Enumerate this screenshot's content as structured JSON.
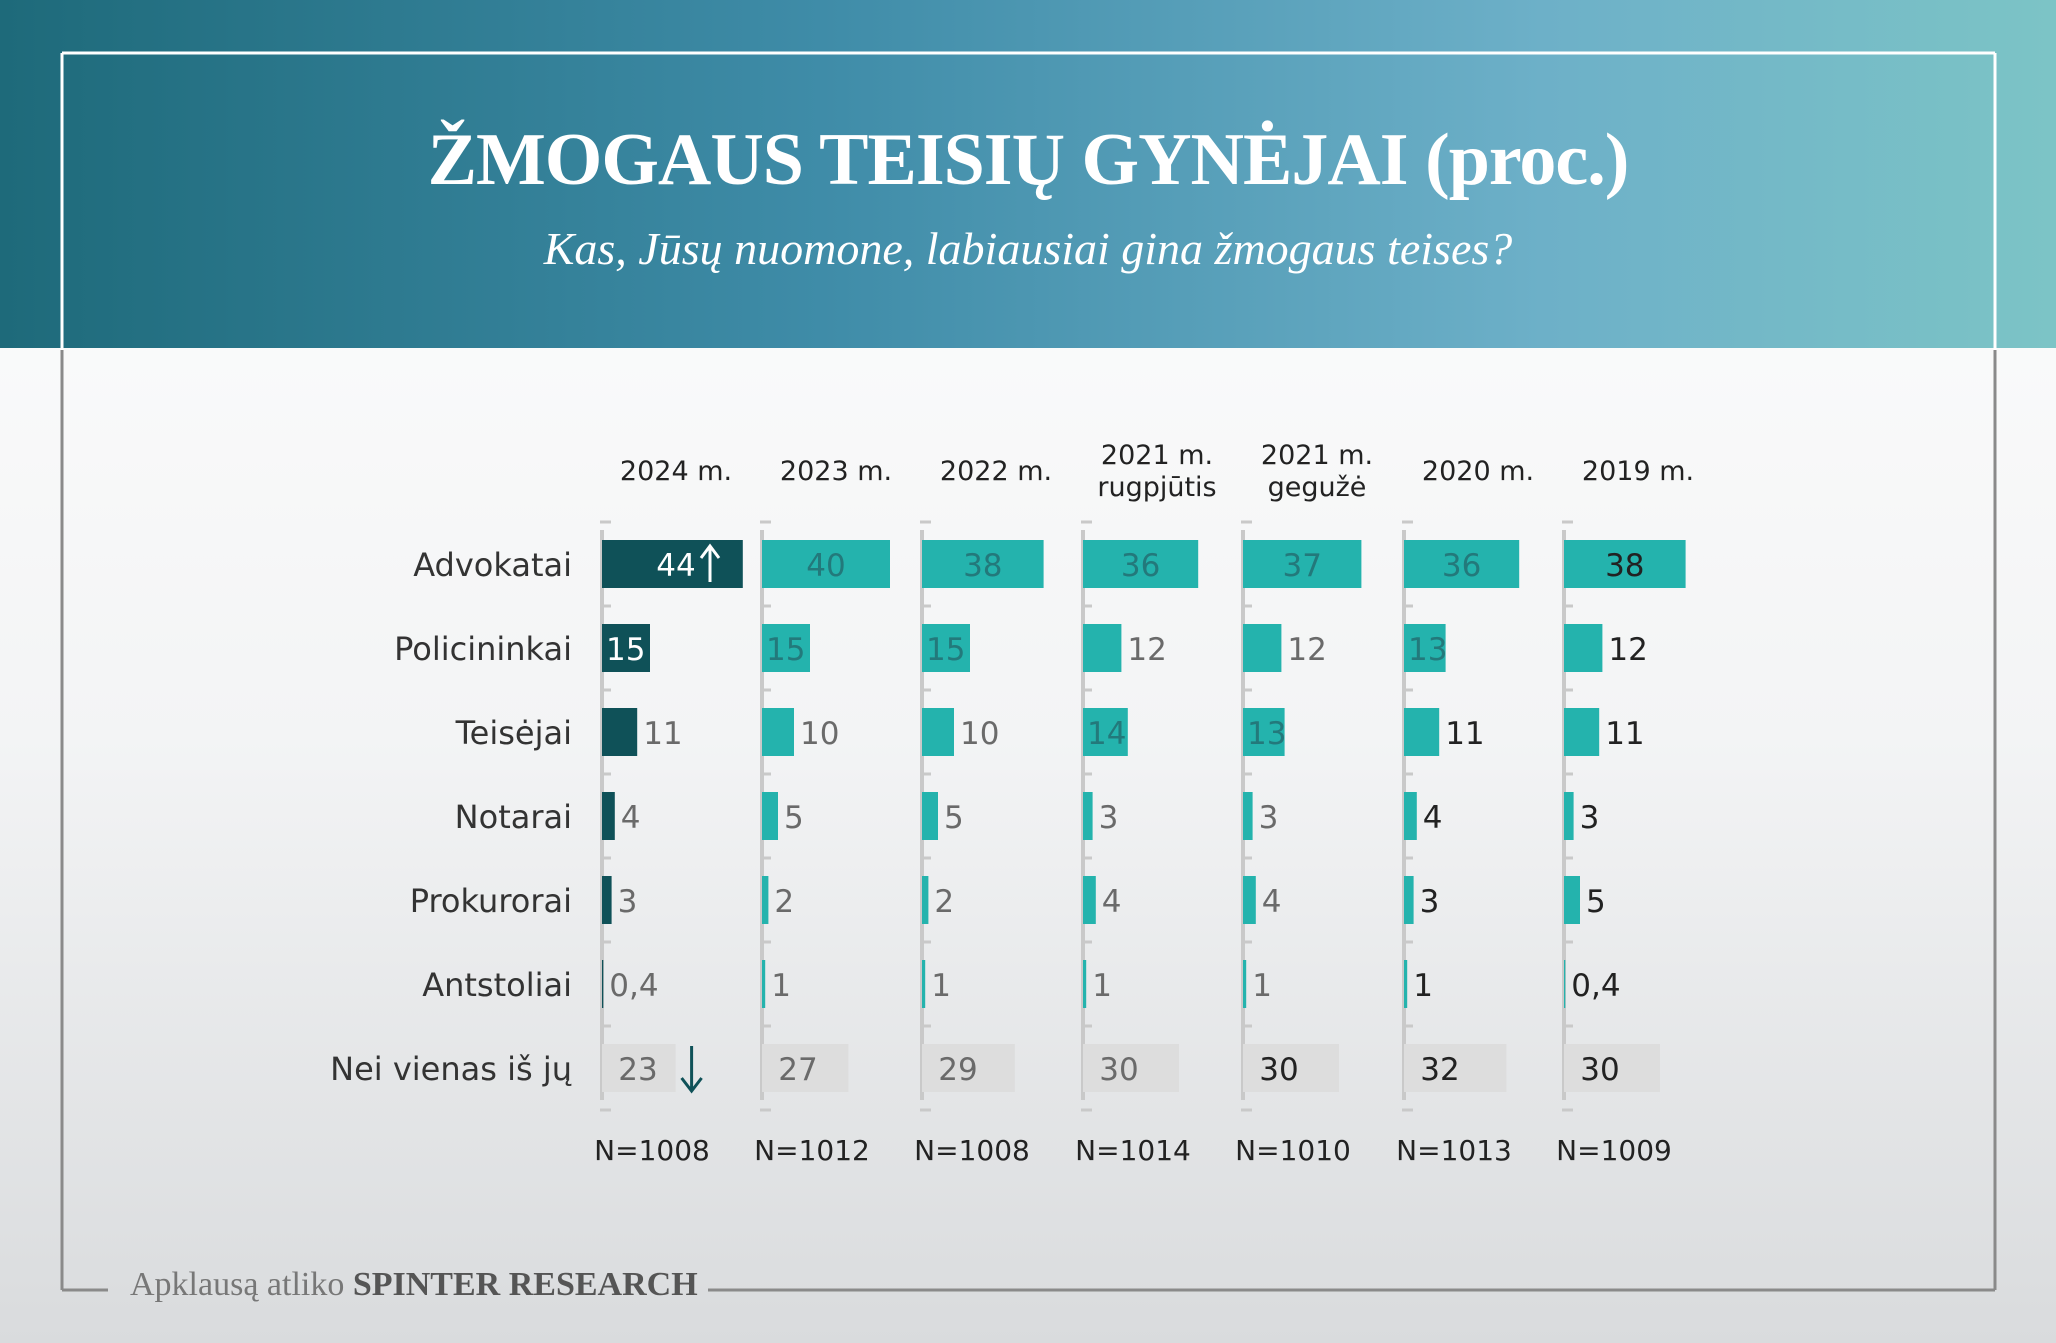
{
  "title": "ŽMOGAUS TEISIŲ GYNĖJAI (proc.)",
  "subtitle": "Kas, Jūsų nuomone, labiausiai gina žmogaus teises?",
  "footer": {
    "prefix": "Apklausą atliko",
    "brand": "SPINTER RESEARCH"
  },
  "colors": {
    "highlight": "#0f5158",
    "bar": "#24b3ad",
    "neutral": "#dddddd",
    "highlight_text": "#ffffff",
    "bar_text": "#23797b",
    "neutral_text": "#6a6a6a",
    "dark_text": "#222222",
    "label_text": "#333333"
  },
  "chart_data": {
    "type": "bar",
    "unit": "proc.",
    "categories": [
      "Advokatai",
      "Policininkai",
      "Teisėjai",
      "Notarai",
      "Prokurorai",
      "Antstoliai",
      "Nei vienas iš jų"
    ],
    "series": [
      {
        "name": "2024 m.",
        "sample": "N=1008",
        "values": [
          44,
          15,
          11,
          4,
          3,
          0.4,
          23
        ],
        "labels": [
          "44",
          "15",
          "11",
          "4",
          "3",
          "0,4",
          "23"
        ],
        "annotations": {
          "0": "up-arrow",
          "6": "down-arrow"
        }
      },
      {
        "name": "2023 m.",
        "sample": "N=1012",
        "values": [
          40,
          15,
          10,
          5,
          2,
          1,
          27
        ],
        "labels": [
          "40",
          "15",
          "10",
          "5",
          "2",
          "1",
          "27"
        ]
      },
      {
        "name": "2022 m.",
        "sample": "N=1008",
        "values": [
          38,
          15,
          10,
          5,
          2,
          1,
          29
        ],
        "labels": [
          "38",
          "15",
          "10",
          "5",
          "2",
          "1",
          "29"
        ]
      },
      {
        "name": "2021 m. rugpjūtis",
        "sample": "N=1014",
        "values": [
          36,
          12,
          14,
          3,
          4,
          1,
          30
        ],
        "labels": [
          "36",
          "12",
          "14",
          "3",
          "4",
          "1",
          "30"
        ]
      },
      {
        "name": "2021 m. gegužė",
        "sample": "N=1010",
        "values": [
          37,
          12,
          13,
          3,
          4,
          1,
          30
        ],
        "labels": [
          "37",
          "12",
          "13",
          "3",
          "4",
          "1",
          "30"
        ]
      },
      {
        "name": "2020 m.",
        "sample": "N=1013",
        "values": [
          36,
          13,
          11,
          4,
          3,
          1,
          32
        ],
        "labels": [
          "36",
          "13",
          "11",
          "4",
          "3",
          "1",
          "32"
        ]
      },
      {
        "name": "2019 m.",
        "sample": "N=1009",
        "values": [
          38,
          12,
          11,
          3,
          5,
          0.4,
          30
        ],
        "labels": [
          "38",
          "12",
          "11",
          "3",
          "5",
          "0,4",
          "30"
        ]
      }
    ]
  }
}
